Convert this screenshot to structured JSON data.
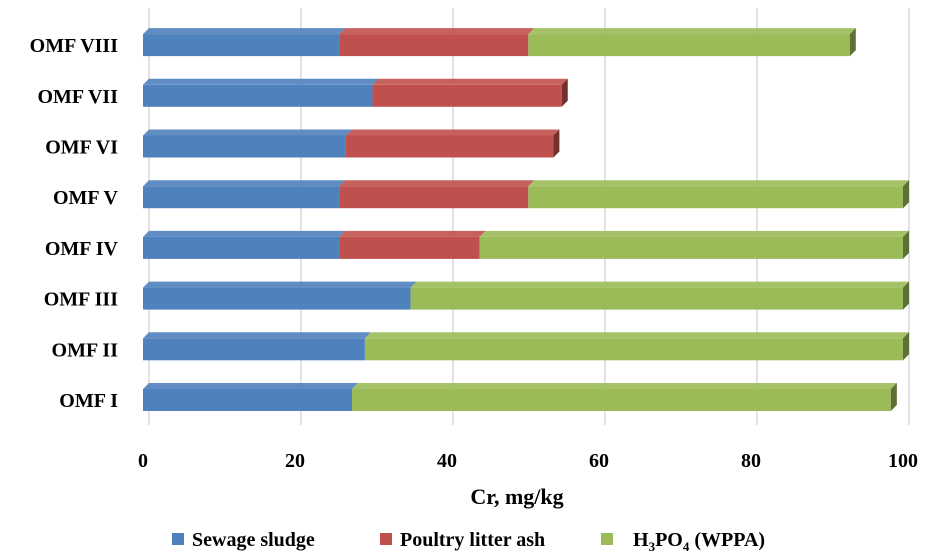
{
  "chart_data": {
    "type": "bar",
    "orientation": "horizontal",
    "stacked": true,
    "categories": [
      "OMF I",
      "OMF II",
      "OMF III",
      "OMF IV",
      "OMF V",
      "OMF VI",
      "OMF VII",
      "OMF VIII"
    ],
    "series": [
      {
        "name": "Sewage sludge",
        "color": "#4f81bd",
        "values": [
          27.5,
          29.2,
          35.2,
          25.8,
          25.8,
          26.7,
          30.2,
          25.8
        ]
      },
      {
        "name": "Poultry litter ash",
        "color": "#c0504d",
        "values": [
          0,
          0,
          0,
          18.5,
          24.9,
          27.3,
          24.9,
          24.9
        ]
      },
      {
        "name": "H3PO4 (WPPA)",
        "color": "#9bbb59",
        "values": [
          70.9,
          70.8,
          64.8,
          55.7,
          49.3,
          0,
          0,
          42.3
        ]
      }
    ],
    "xlabel": "Cr, mg/kg",
    "xlim": [
      0,
      100
    ],
    "xticks": [
      "0",
      "20",
      "40",
      "60",
      "80",
      "100"
    ],
    "grid": "vertical",
    "legend_position": "bottom"
  }
}
